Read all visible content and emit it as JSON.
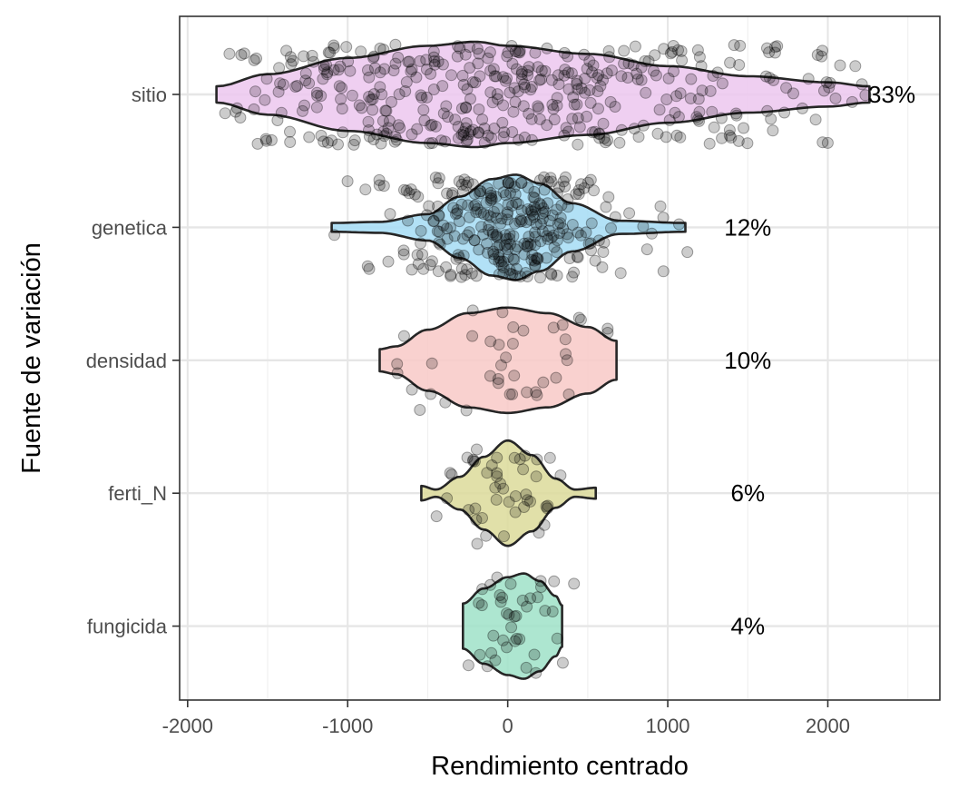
{
  "chart_data": {
    "type": "violin",
    "xlabel": "Rendimiento centrado",
    "ylabel": "Fuente de variación",
    "xlim": [
      -2050,
      2700
    ],
    "x_ticks": [
      -2000,
      -1000,
      0,
      1000,
      2000
    ],
    "x_tick_labels": [
      "-2000",
      "-1000",
      "0",
      "1000",
      "2000"
    ],
    "grid": true,
    "legend": "none",
    "point_color": "#000000",
    "outline_color": "#262626",
    "categories": [
      "sitio",
      "genetica",
      "densidad",
      "ferti_N",
      "fungicida"
    ],
    "series": [
      {
        "category": "sitio",
        "percent_label": "33%",
        "percent_x": 2400,
        "fill": "#ecc7ee",
        "min": -1820,
        "max": 2260,
        "approx_points": 420,
        "jitter": 0.38,
        "profile": [
          [
            -1820,
            0.02
          ],
          [
            -1500,
            0.05
          ],
          [
            -1000,
            0.09
          ],
          [
            -500,
            0.12
          ],
          [
            -200,
            0.13
          ],
          [
            0,
            0.12
          ],
          [
            500,
            0.1
          ],
          [
            1000,
            0.07
          ],
          [
            1500,
            0.045
          ],
          [
            2000,
            0.03
          ],
          [
            2260,
            0.02
          ]
        ]
      },
      {
        "category": "genetica",
        "percent_label": "12%",
        "percent_x": 1500,
        "fill": "#a4dcf5",
        "min": -1100,
        "max": 1110,
        "approx_points": 300,
        "jitter": 0.38,
        "profile": [
          [
            -1100,
            0.02
          ],
          [
            -800,
            0.025
          ],
          [
            -500,
            0.06
          ],
          [
            -300,
            0.14
          ],
          [
            -100,
            0.22
          ],
          [
            50,
            0.24
          ],
          [
            200,
            0.2
          ],
          [
            400,
            0.11
          ],
          [
            700,
            0.03
          ],
          [
            1110,
            0.02
          ]
        ]
      },
      {
        "category": "densidad",
        "percent_label": "10%",
        "percent_x": 1500,
        "fill": "#f8c9c7",
        "min": -800,
        "max": 680,
        "approx_points": 40,
        "jitter": 0.38,
        "profile": [
          [
            -800,
            0.04
          ],
          [
            -700,
            0.05
          ],
          [
            -500,
            0.11
          ],
          [
            -250,
            0.17
          ],
          [
            0,
            0.19
          ],
          [
            250,
            0.17
          ],
          [
            500,
            0.12
          ],
          [
            680,
            0.07
          ]
        ]
      },
      {
        "category": "ferti_N",
        "percent_label": "6%",
        "percent_x": 1500,
        "fill": "#dcdb9a",
        "min": -540,
        "max": 550,
        "approx_points": 45,
        "jitter": 0.4,
        "profile": [
          [
            -540,
            0.04
          ],
          [
            -450,
            0.02
          ],
          [
            -300,
            0.09
          ],
          [
            -150,
            0.2
          ],
          [
            0,
            0.29
          ],
          [
            150,
            0.21
          ],
          [
            300,
            0.08
          ],
          [
            420,
            0.02
          ],
          [
            550,
            0.03
          ]
        ]
      },
      {
        "category": "fungicida",
        "percent_label": "4%",
        "percent_x": 1500,
        "fill": "#9fe2c8",
        "min": -280,
        "max": 340,
        "approx_points": 40,
        "jitter": 0.38,
        "profile": [
          [
            -280,
            0.12
          ],
          [
            -150,
            0.2
          ],
          [
            0,
            0.26
          ],
          [
            100,
            0.28
          ],
          [
            200,
            0.24
          ],
          [
            300,
            0.16
          ],
          [
            340,
            0.11
          ]
        ]
      }
    ]
  }
}
